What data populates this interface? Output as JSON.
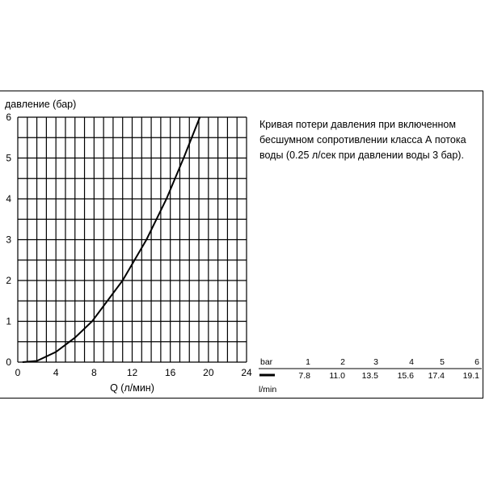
{
  "chart_data": {
    "type": "line",
    "ylabel": "давление (бар)",
    "xlabel": "Q (л/мин)",
    "xlim": [
      0,
      24
    ],
    "ylim": [
      0,
      6
    ],
    "x_ticks": [
      0,
      4,
      8,
      12,
      16,
      20,
      24
    ],
    "y_ticks": [
      0,
      1,
      2,
      3,
      4,
      5,
      6
    ],
    "grid": true,
    "series": [
      {
        "x": [
          0.5,
          2,
          4,
          6,
          7.8,
          11.0,
          13.5,
          15.6,
          17.4,
          19.1
        ],
        "y": [
          0,
          0.03,
          0.25,
          0.6,
          1,
          2,
          3,
          4,
          5,
          6
        ]
      }
    ],
    "description": [
      "Кривая потери давления при включенном",
      "бесшумном сопротивлении класса А потока",
      "воды (0.25 л/сек при давлении воды 3 бар)."
    ],
    "table": {
      "row1_label": "bar",
      "row2_label": "l/min",
      "bar": [
        "1",
        "2",
        "3",
        "4",
        "5",
        "6"
      ],
      "lmin": [
        "7.8",
        "11.0",
        "13.5",
        "15.6",
        "17.4",
        "19.1"
      ]
    }
  }
}
